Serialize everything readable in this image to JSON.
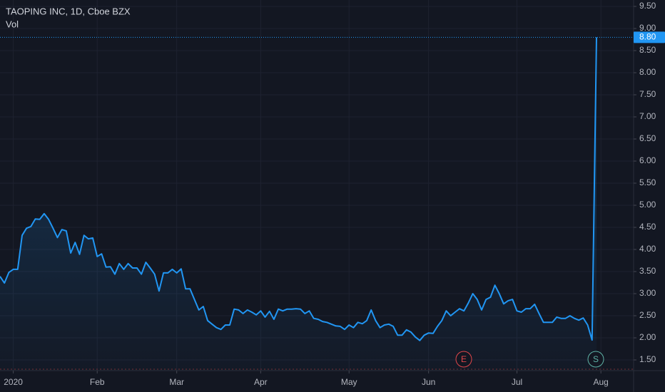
{
  "chart_data": {
    "type": "line",
    "title": "TAOPING INC, 1D, Cboe BZX",
    "subtitle": "Vol",
    "color": "#2196f3",
    "values": [
      3.39,
      3.24,
      3.48,
      3.55,
      3.55,
      4.32,
      4.48,
      4.52,
      4.69,
      4.68,
      4.81,
      4.68,
      4.48,
      4.27,
      4.45,
      4.42,
      3.92,
      4.16,
      3.89,
      4.32,
      4.24,
      4.26,
      3.84,
      3.9,
      3.6,
      3.61,
      3.44,
      3.68,
      3.55,
      3.68,
      3.58,
      3.58,
      3.44,
      3.71,
      3.58,
      3.44,
      3.06,
      3.47,
      3.47,
      3.55,
      3.47,
      3.56,
      3.11,
      3.11,
      2.87,
      2.63,
      2.71,
      2.39,
      2.31,
      2.23,
      2.19,
      2.29,
      2.29,
      2.65,
      2.63,
      2.55,
      2.63,
      2.58,
      2.52,
      2.61,
      2.47,
      2.6,
      2.42,
      2.65,
      2.61,
      2.65,
      2.65,
      2.66,
      2.65,
      2.55,
      2.61,
      2.44,
      2.42,
      2.37,
      2.35,
      2.31,
      2.27,
      2.26,
      2.19,
      2.29,
      2.23,
      2.35,
      2.32,
      2.39,
      2.63,
      2.39,
      2.23,
      2.29,
      2.31,
      2.26,
      2.06,
      2.06,
      2.18,
      2.13,
      2.02,
      1.94,
      2.06,
      2.11,
      2.1,
      2.26,
      2.39,
      2.61,
      2.5,
      2.58,
      2.66,
      2.61,
      2.79,
      3.0,
      2.87,
      2.63,
      2.87,
      2.92,
      3.19,
      3.0,
      2.77,
      2.84,
      2.87,
      2.61,
      2.58,
      2.66,
      2.66,
      2.76,
      2.55,
      2.35,
      2.35,
      2.35,
      2.47,
      2.44,
      2.44,
      2.5,
      2.44,
      2.4,
      2.45,
      2.29,
      1.95,
      8.8
    ],
    "last_price": {
      "value": 8.8,
      "label": "8.80"
    },
    "xlim": [
      0,
      143.4
    ],
    "xticks": [
      {
        "value": 3,
        "label": "2020"
      },
      {
        "value": 22,
        "label": "Feb"
      },
      {
        "value": 40,
        "label": "Mar"
      },
      {
        "value": 59,
        "label": "Apr"
      },
      {
        "value": 79,
        "label": "May"
      },
      {
        "value": 97,
        "label": "Jun"
      },
      {
        "value": 117,
        "label": "Jul"
      },
      {
        "value": 136,
        "label": "Aug"
      }
    ],
    "ylim": [
      1.258,
      9.645
    ],
    "yticks": [
      {
        "value": 1.5,
        "label": "1.50"
      },
      {
        "value": 2,
        "label": "2.00"
      },
      {
        "value": 2.5,
        "label": "2.50"
      },
      {
        "value": 3,
        "label": "3.00"
      },
      {
        "value": 3.5,
        "label": "3.50"
      },
      {
        "value": 4,
        "label": "4.00"
      },
      {
        "value": 4.5,
        "label": "4.50"
      },
      {
        "value": 5,
        "label": "5.00"
      },
      {
        "value": 5.5,
        "label": "5.50"
      },
      {
        "value": 6,
        "label": "6.00"
      },
      {
        "value": 6.5,
        "label": "6.50"
      },
      {
        "value": 7,
        "label": "7.00"
      },
      {
        "value": 7.5,
        "label": "7.50"
      },
      {
        "value": 8,
        "label": "8.00"
      },
      {
        "value": 8.5,
        "label": "8.50"
      },
      {
        "value": 9,
        "label": "9.00"
      },
      {
        "value": 9.5,
        "label": "9.50"
      }
    ],
    "grid": true,
    "markers": [
      {
        "label": "E",
        "color": "#e0474c"
      },
      {
        "label": "S",
        "color": "#5fb3a7"
      }
    ]
  }
}
